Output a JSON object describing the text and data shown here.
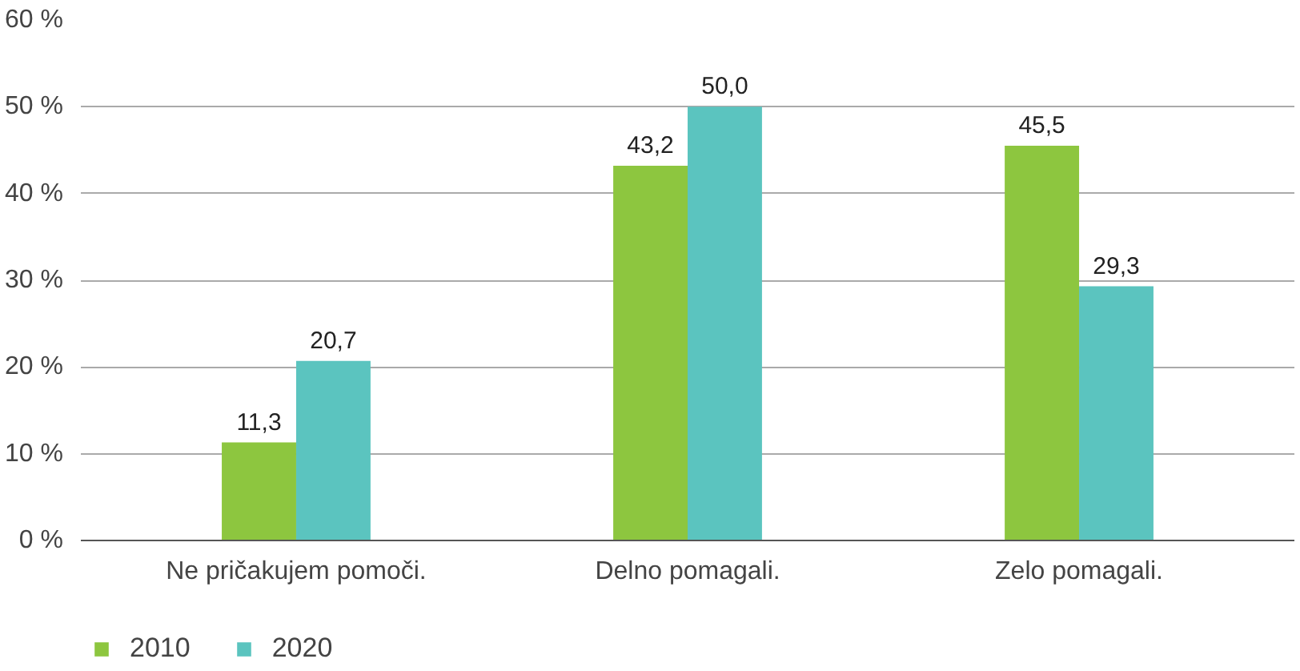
{
  "chart_data": {
    "type": "bar",
    "categories": [
      "Ne pričakujem pomoči.",
      "Delno pomagali.",
      "Zelo pomagali."
    ],
    "series": [
      {
        "name": "2010",
        "color": "#8dc63f",
        "values": [
          11.3,
          43.2,
          45.5
        ],
        "value_labels": [
          "11,3",
          "43,2",
          "45,5"
        ]
      },
      {
        "name": "2020",
        "color": "#5bc4bf",
        "values": [
          20.7,
          50.0,
          29.3
        ],
        "value_labels": [
          "20,7",
          "50,0",
          "29,3"
        ]
      }
    ],
    "ylim": [
      0,
      60
    ],
    "yticks": [
      {
        "value": 0,
        "label": "0 %"
      },
      {
        "value": 10,
        "label": "10 %"
      },
      {
        "value": 20,
        "label": "20 %"
      },
      {
        "value": 30,
        "label": "30 %"
      },
      {
        "value": 40,
        "label": "40 %"
      },
      {
        "value": 50,
        "label": "50 %"
      },
      {
        "value": 60,
        "label": "60 %"
      }
    ],
    "grid": "y",
    "legend": "bottom left"
  }
}
